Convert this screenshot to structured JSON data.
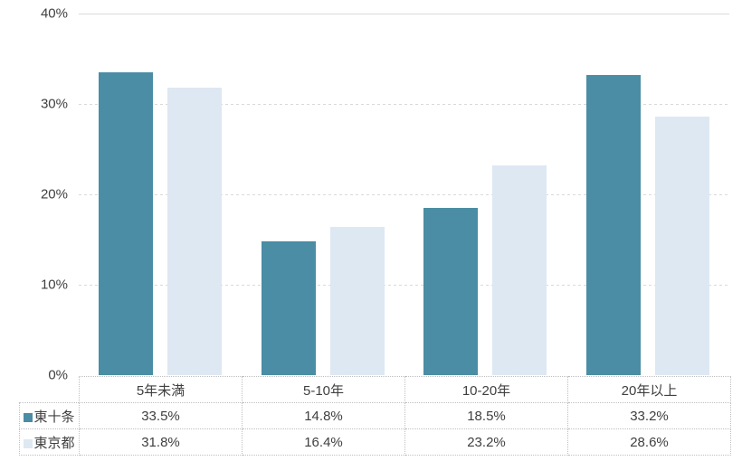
{
  "chart_data": {
    "type": "bar",
    "categories": [
      "5年未満",
      "5-10年",
      "10-20年",
      "20年以上"
    ],
    "series": [
      {
        "name": "東十条",
        "color": "#4A8DA5",
        "values": [
          33.5,
          14.8,
          18.5,
          33.2
        ]
      },
      {
        "name": "東京都",
        "color": "#DDE8F3",
        "values": [
          31.8,
          16.4,
          23.2,
          28.6
        ]
      }
    ],
    "title": "",
    "xlabel": "",
    "ylabel": "",
    "ylim": [
      0,
      40
    ],
    "ytick_step": 10,
    "ytick_suffix": "%",
    "value_suffix": "%",
    "value_decimals": 1,
    "grid": "horizontal",
    "legend_position": "table-left-of-rows"
  },
  "colors": {
    "series_1": "#4A8DA5",
    "series_2": "#DDE8F3",
    "gridline": "#d9d9d9",
    "table_border": "#bfbfbf",
    "text": "#3f3f3f",
    "background": "#ffffff"
  }
}
